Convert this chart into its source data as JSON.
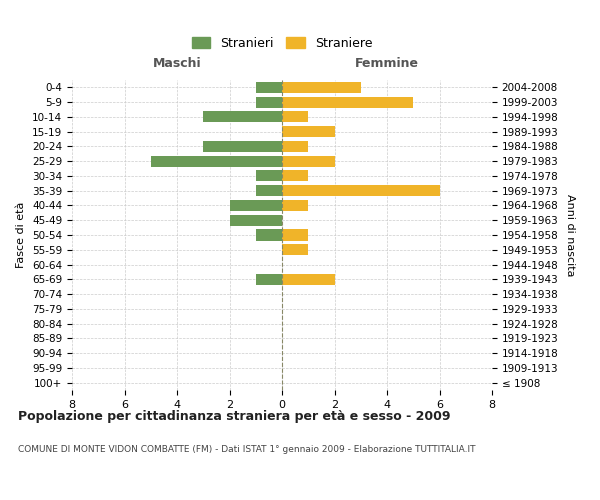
{
  "age_groups": [
    "100+",
    "95-99",
    "90-94",
    "85-89",
    "80-84",
    "75-79",
    "70-74",
    "65-69",
    "60-64",
    "55-59",
    "50-54",
    "45-49",
    "40-44",
    "35-39",
    "30-34",
    "25-29",
    "20-24",
    "15-19",
    "10-14",
    "5-9",
    "0-4"
  ],
  "birth_years": [
    "≤ 1908",
    "1909-1913",
    "1914-1918",
    "1919-1923",
    "1924-1928",
    "1929-1933",
    "1934-1938",
    "1939-1943",
    "1944-1948",
    "1949-1953",
    "1954-1958",
    "1959-1963",
    "1964-1968",
    "1969-1973",
    "1974-1978",
    "1979-1983",
    "1984-1988",
    "1989-1993",
    "1994-1998",
    "1999-2003",
    "2004-2008"
  ],
  "maschi": [
    0,
    0,
    0,
    0,
    0,
    0,
    0,
    1,
    0,
    0,
    1,
    2,
    2,
    1,
    1,
    5,
    3,
    0,
    3,
    1,
    1
  ],
  "femmine": [
    0,
    0,
    0,
    0,
    0,
    0,
    0,
    2,
    0,
    1,
    1,
    0,
    1,
    6,
    1,
    2,
    1,
    2,
    1,
    5,
    3
  ],
  "maschi_color": "#6a9a56",
  "femmine_color": "#f0b429",
  "background_color": "#ffffff",
  "grid_color": "#cccccc",
  "centerline_color": "#888866",
  "title": "Popolazione per cittadinanza straniera per età e sesso - 2009",
  "subtitle": "COMUNE DI MONTE VIDON COMBATTE (FM) - Dati ISTAT 1° gennaio 2009 - Elaborazione TUTTITALIA.IT",
  "xlabel_left": "Maschi",
  "xlabel_right": "Femmine",
  "ylabel_left": "Fasce di età",
  "ylabel_right": "Anni di nascita",
  "legend_maschi": "Stranieri",
  "legend_femmine": "Straniere",
  "xlim": 8,
  "bar_height": 0.75
}
